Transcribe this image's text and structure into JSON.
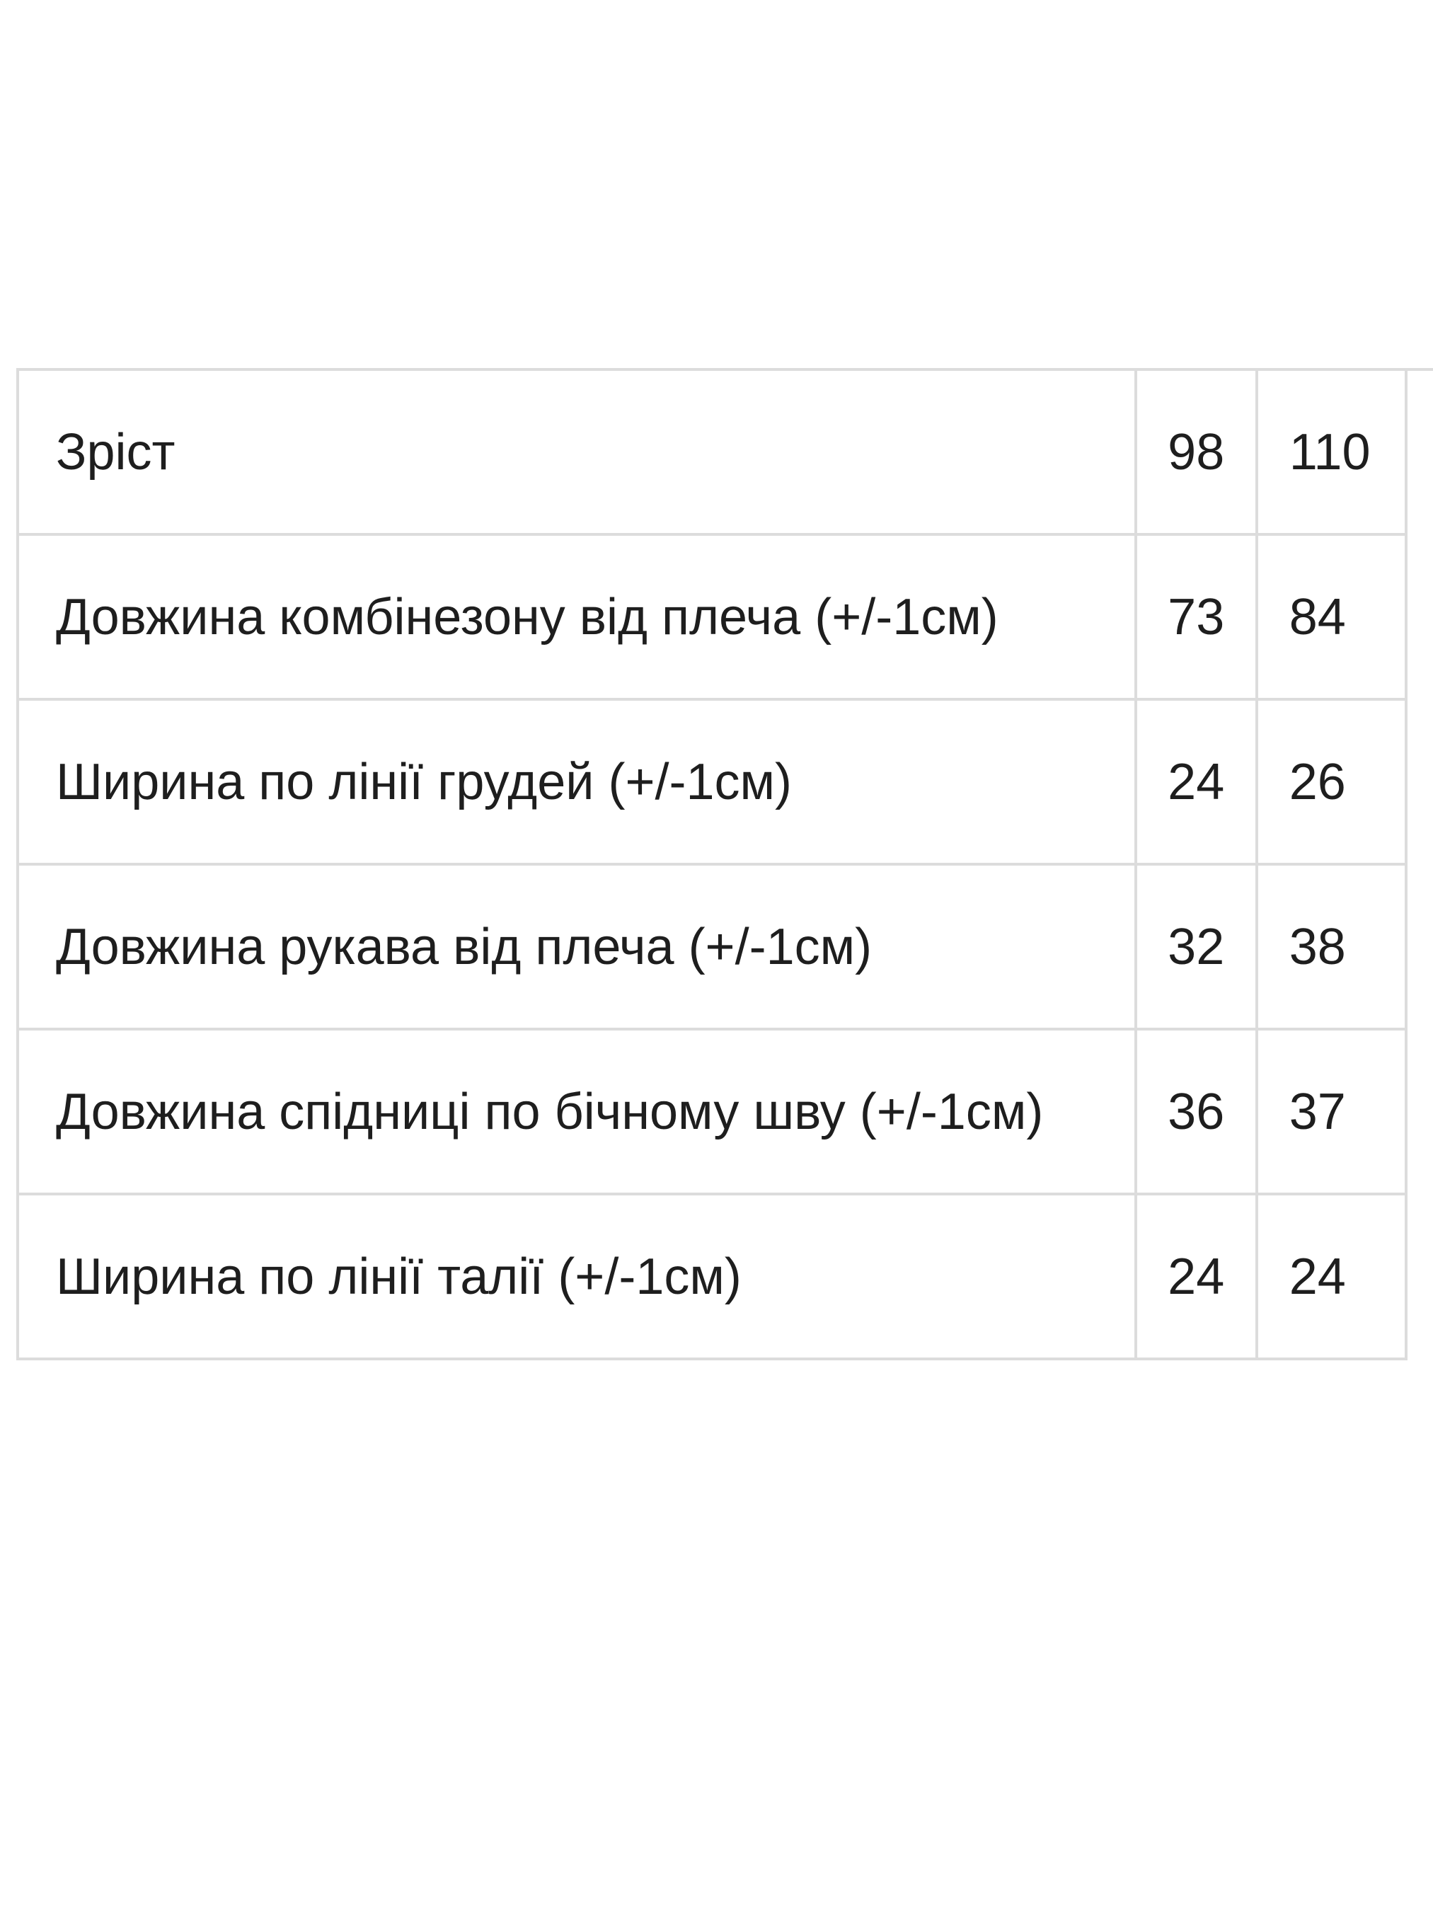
{
  "size_table": {
    "rows": [
      {
        "label": "Зріст",
        "values": [
          "98",
          "110"
        ]
      },
      {
        "label": "Довжина комбінезону від плеча (+/-1см)",
        "values": [
          "73",
          "84"
        ]
      },
      {
        "label": "Ширина по лінії грудей (+/-1см)",
        "values": [
          "24",
          "26"
        ]
      },
      {
        "label": "Довжина рукава від плеча (+/-1см)",
        "values": [
          "32",
          "38"
        ]
      },
      {
        "label": "Довжина спідниці по бічному шву (+/-1см)",
        "values": [
          "36",
          "37"
        ]
      },
      {
        "label": "Ширина по лінії талії (+/-1см)",
        "values": [
          "24",
          "24"
        ]
      }
    ]
  }
}
